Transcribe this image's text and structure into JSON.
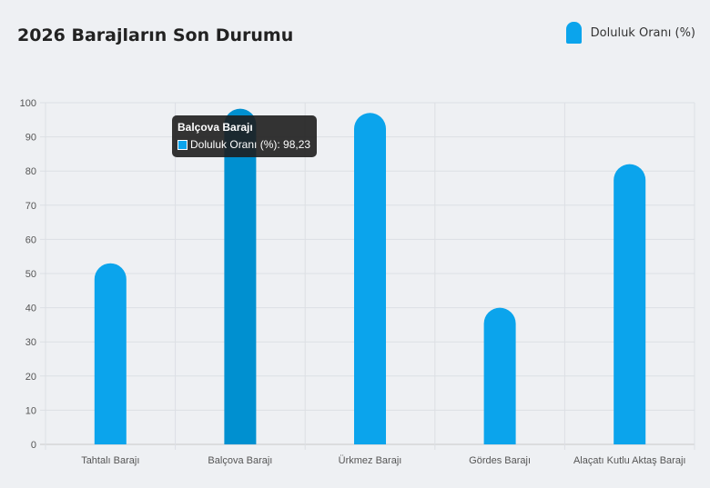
{
  "title": "2026 Barajların Son Durumu",
  "legend": {
    "label": "Doluluk Oranı (%)",
    "color": "#0ba4ec"
  },
  "tooltip": {
    "title": "Balçova Barajı",
    "label": "Doluluk Oranı (%)",
    "value": "98,23",
    "text": "Doluluk Oranı (%): 98,23"
  },
  "chart_data": {
    "type": "bar",
    "title": "2026 Barajların Son Durumu",
    "categories": [
      "Tahtalı Barajı",
      "Balçova Barajı",
      "Ürkmez Barajı",
      "Gördes Barajı",
      "Alaçatı Kutlu Aktaş Barajı"
    ],
    "series": [
      {
        "name": "Doluluk Oranı (%)",
        "values": [
          53,
          98.23,
          97,
          40,
          82
        ]
      }
    ],
    "ylim": [
      0,
      100
    ],
    "yticks": [
      0,
      10,
      20,
      30,
      40,
      50,
      60,
      70,
      80,
      90,
      100
    ],
    "grid": true,
    "legend_position": "top-right",
    "highlighted_category": "Balçova Barajı",
    "colors": {
      "bar": "#0ba4ec",
      "bar_hover": "#0090d0"
    }
  }
}
